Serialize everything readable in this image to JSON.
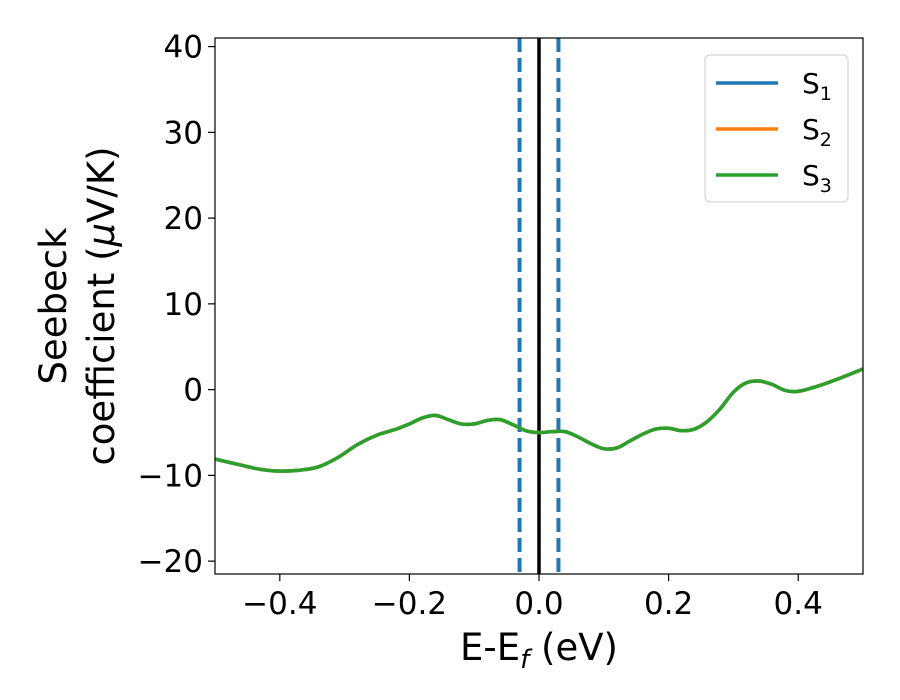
{
  "chart_data": {
    "type": "line",
    "title": "",
    "xlabel": {
      "main": "E-E",
      "sub": "f",
      "unit": " (eV)"
    },
    "ylabel": {
      "line1": "Seebeck",
      "line2_prefix": "coefficient  (",
      "mu": "μ",
      "line2_suffix": "V/K)"
    },
    "xlim": [
      -0.5,
      0.5
    ],
    "ylim": [
      -21.5,
      41
    ],
    "xticks": [
      -0.4,
      -0.2,
      0.0,
      0.2,
      0.4
    ],
    "xtick_labels": [
      "−0.4",
      "−0.2",
      "0.0",
      "0.2",
      "0.4"
    ],
    "yticks": [
      -20,
      -10,
      0,
      10,
      20,
      30,
      40
    ],
    "ytick_labels": [
      "−20",
      "−10",
      "0",
      "10",
      "20",
      "30",
      "40"
    ],
    "grid": false,
    "legend_position": "top-right",
    "colors": {
      "S1": "#1f77b4",
      "S2": "#ff7f0e",
      "S3": "#2ca02c",
      "fermi": "#000000"
    },
    "vertical_lines": [
      {
        "x": -0.03,
        "style": "dashed",
        "color": "#1f77b4"
      },
      {
        "x": 0.03,
        "style": "dashed",
        "color": "#1f77b4"
      },
      {
        "x": 0.0,
        "style": "solid",
        "color": "#000000"
      }
    ],
    "x": [
      -0.5,
      -0.46,
      -0.43,
      -0.4,
      -0.37,
      -0.34,
      -0.31,
      -0.28,
      -0.25,
      -0.22,
      -0.2,
      -0.18,
      -0.16,
      -0.14,
      -0.12,
      -0.1,
      -0.08,
      -0.06,
      -0.04,
      -0.02,
      0.0,
      0.02,
      0.04,
      0.06,
      0.08,
      0.1,
      0.12,
      0.14,
      0.16,
      0.18,
      0.2,
      0.22,
      0.24,
      0.26,
      0.28,
      0.3,
      0.32,
      0.34,
      0.36,
      0.38,
      0.4,
      0.43,
      0.46,
      0.5
    ],
    "series": [
      {
        "name": "S",
        "sub": "1",
        "color": "#1f77b4",
        "values": [
          -8.1,
          -8.8,
          -9.3,
          -9.5,
          -9.4,
          -9.0,
          -7.9,
          -6.4,
          -5.3,
          -4.6,
          -4.0,
          -3.3,
          -3.0,
          -3.5,
          -4.0,
          -4.0,
          -3.6,
          -3.5,
          -4.1,
          -4.8,
          -5.0,
          -4.9,
          -4.9,
          -5.5,
          -6.3,
          -6.9,
          -6.8,
          -6.0,
          -5.2,
          -4.6,
          -4.5,
          -4.8,
          -4.6,
          -3.7,
          -2.2,
          -0.3,
          0.8,
          1.0,
          0.6,
          -0.1,
          -0.2,
          0.4,
          1.2,
          2.4
        ]
      },
      {
        "name": "S",
        "sub": "2",
        "color": "#ff7f0e",
        "values": [
          -8.1,
          -8.8,
          -9.3,
          -9.5,
          -9.4,
          -9.0,
          -7.9,
          -6.4,
          -5.3,
          -4.6,
          -4.0,
          -3.3,
          -3.0,
          -3.5,
          -4.0,
          -4.0,
          -3.6,
          -3.5,
          -4.1,
          -4.8,
          -5.0,
          -4.9,
          -4.9,
          -5.5,
          -6.3,
          -6.9,
          -6.8,
          -6.0,
          -5.2,
          -4.6,
          -4.5,
          -4.8,
          -4.6,
          -3.7,
          -2.2,
          -0.3,
          0.8,
          1.0,
          0.6,
          -0.1,
          -0.2,
          0.4,
          1.2,
          2.4
        ]
      },
      {
        "name": "S",
        "sub": "3",
        "color": "#2ca02c",
        "values": [
          -8.1,
          -8.8,
          -9.3,
          -9.5,
          -9.4,
          -9.0,
          -7.9,
          -6.4,
          -5.3,
          -4.6,
          -4.0,
          -3.3,
          -3.0,
          -3.5,
          -4.0,
          -4.0,
          -3.6,
          -3.5,
          -4.1,
          -4.8,
          -5.0,
          -4.9,
          -4.9,
          -5.5,
          -6.3,
          -6.9,
          -6.8,
          -6.0,
          -5.2,
          -4.6,
          -4.5,
          -4.8,
          -4.6,
          -3.7,
          -2.2,
          -0.3,
          0.8,
          1.0,
          0.6,
          -0.1,
          -0.2,
          0.4,
          1.2,
          2.4
        ]
      }
    ]
  }
}
